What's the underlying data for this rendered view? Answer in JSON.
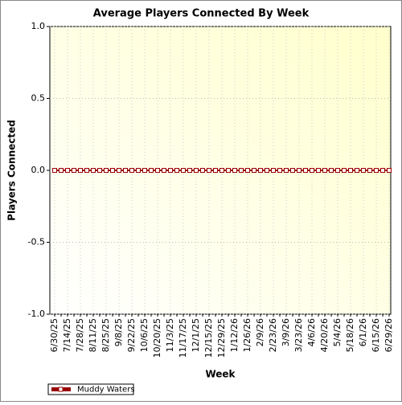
{
  "chart_data": {
    "type": "line",
    "title": "Average Players Connected By Week",
    "x_label": "Week",
    "y_label": "Players Connected",
    "categories": [
      "6/30/25",
      null,
      "7/14/25",
      null,
      "7/28/25",
      null,
      "8/11/25",
      null,
      "8/25/25",
      null,
      "9/8/25",
      null,
      "9/22/25",
      null,
      "10/6/25",
      null,
      "10/20/25",
      null,
      "11/3/25",
      null,
      "11/17/25",
      null,
      "12/1/25",
      null,
      "12/15/25",
      null,
      "12/29/25",
      null,
      "1/12/26",
      null,
      "1/26/26",
      null,
      "2/9/26",
      null,
      "2/23/26",
      null,
      "3/9/26",
      null,
      "3/23/26",
      null,
      "4/6/26",
      null,
      "4/20/26",
      null,
      "5/4/26",
      null,
      "5/18/26",
      null,
      "6/1/26",
      null,
      "6/15/26",
      null,
      "6/29/26"
    ],
    "series": [
      {
        "name": "Muddy Waters",
        "color": "#990000",
        "values": [
          0,
          0,
          0,
          0,
          0,
          0,
          0,
          0,
          0,
          0,
          0,
          0,
          0,
          0,
          0,
          0,
          0,
          0,
          0,
          0,
          0,
          0,
          0,
          0,
          0,
          0,
          0,
          0,
          0,
          0,
          0,
          0,
          0,
          0,
          0,
          0,
          0,
          0,
          0,
          0,
          0,
          0,
          0,
          0,
          0,
          0,
          0,
          0,
          0,
          0,
          0,
          0,
          0
        ]
      }
    ],
    "ylim": [
      -1,
      1
    ],
    "yticks": [
      {
        "value": -1,
        "label": "-1.0"
      },
      -0.5,
      {
        "value": 0,
        "label": "0.0"
      },
      0.5,
      {
        "value": 1,
        "label": "1.0"
      }
    ],
    "grid": true
  }
}
